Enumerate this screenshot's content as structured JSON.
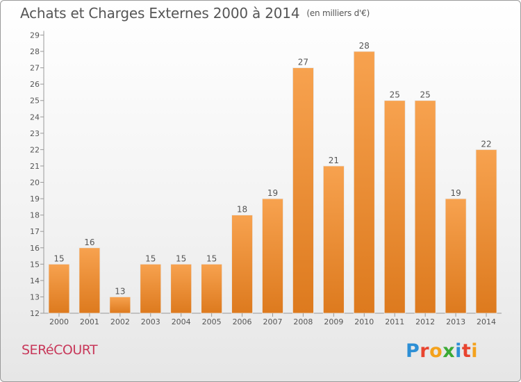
{
  "header": {
    "title": "Achats et Charges Externes 2000 à 2014",
    "unit": "(en milliers d'€)"
  },
  "footer": {
    "commune": "SERéCOURT",
    "brand": "Proxiti"
  },
  "colors": {
    "bar_top": "#f7a24f",
    "bar_bottom": "#dd7a1e",
    "text": "#555555",
    "commune": "#c8385a"
  },
  "chart_data": {
    "type": "bar",
    "categories": [
      "2000",
      "2001",
      "2002",
      "2003",
      "2004",
      "2005",
      "2006",
      "2007",
      "2008",
      "2009",
      "2010",
      "2011",
      "2012",
      "2013",
      "2014"
    ],
    "values": [
      15,
      16,
      13,
      15,
      15,
      15,
      18,
      19,
      27,
      21,
      28,
      25,
      25,
      19,
      22
    ],
    "title": "Achats et Charges Externes 2000 à 2014",
    "ylim": [
      12,
      29
    ],
    "yticks": [
      12,
      13,
      14,
      15,
      16,
      17,
      18,
      19,
      20,
      21,
      22,
      23,
      24,
      25,
      26,
      27,
      28,
      29
    ],
    "grid": false,
    "legend": "none"
  }
}
